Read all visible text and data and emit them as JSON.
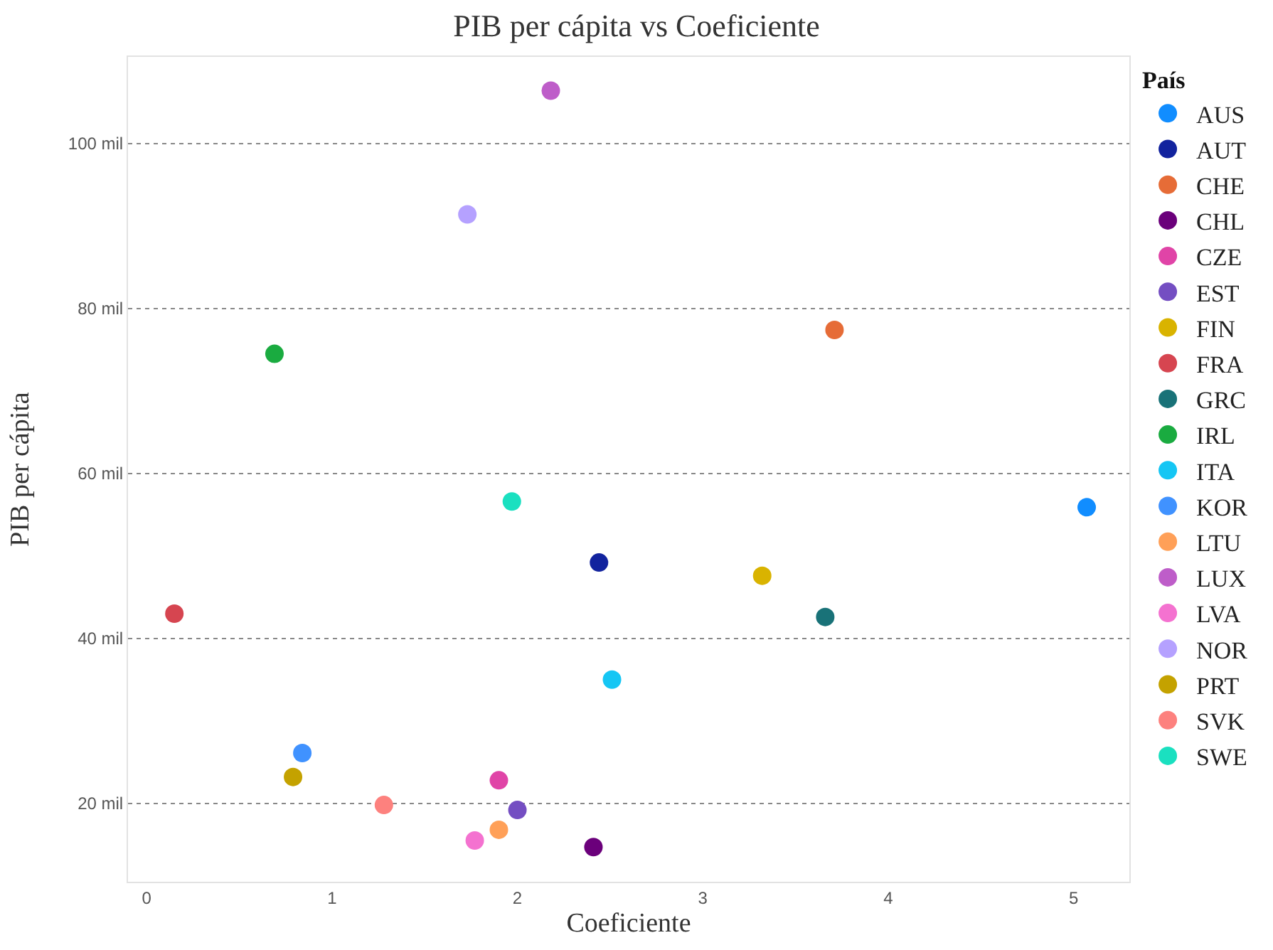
{
  "chart_data": {
    "type": "scatter",
    "title": "PIB per cápita vs Coeficiente",
    "xlabel": "Coeficiente",
    "ylabel": "PIB per cápita",
    "legend_title": "País",
    "xlim": [
      -0.1,
      5.3
    ],
    "xticks": [
      0,
      1,
      2,
      3,
      4,
      5
    ],
    "ylim": [
      10.5,
      110.5
    ],
    "yticks": [
      {
        "value": 20,
        "label": "20 mil"
      },
      {
        "value": 40,
        "label": "40 mil"
      },
      {
        "value": 60,
        "label": "60 mil"
      },
      {
        "value": 80,
        "label": "80 mil"
      },
      {
        "value": 100,
        "label": "100 mil"
      }
    ],
    "grid": "y",
    "legend": "right",
    "marker": "circle",
    "series": [
      {
        "name": "AUS",
        "color": "#118dff",
        "x": [
          5.07
        ],
        "values": [
          55.9
        ]
      },
      {
        "name": "AUT",
        "color": "#12239e",
        "x": [
          2.44
        ],
        "values": [
          49.2
        ]
      },
      {
        "name": "CHE",
        "color": "#e66c37",
        "x": [
          3.71
        ],
        "values": [
          77.4
        ]
      },
      {
        "name": "CHL",
        "color": "#6b007b",
        "x": [
          2.41
        ],
        "values": [
          14.7
        ]
      },
      {
        "name": "CZE",
        "color": "#e044a7",
        "x": [
          1.9
        ],
        "values": [
          22.8
        ]
      },
      {
        "name": "EST",
        "color": "#744ec2",
        "x": [
          2.0
        ],
        "values": [
          19.2
        ]
      },
      {
        "name": "FIN",
        "color": "#d9b300",
        "x": [
          3.32
        ],
        "values": [
          47.6
        ]
      },
      {
        "name": "FRA",
        "color": "#d64550",
        "x": [
          0.15
        ],
        "values": [
          43.0
        ]
      },
      {
        "name": "GRC",
        "color": "#197278",
        "x": [
          3.66
        ],
        "values": [
          42.6
        ]
      },
      {
        "name": "IRL",
        "color": "#1aab40",
        "x": [
          0.69
        ],
        "values": [
          74.5
        ]
      },
      {
        "name": "ITA",
        "color": "#15c6f4",
        "x": [
          2.51
        ],
        "values": [
          35.0
        ]
      },
      {
        "name": "KOR",
        "color": "#4092ff",
        "x": [
          0.84
        ],
        "values": [
          26.1
        ]
      },
      {
        "name": "LTU",
        "color": "#ffa058",
        "x": [
          1.9
        ],
        "values": [
          16.8
        ]
      },
      {
        "name": "LUX",
        "color": "#be5dc9",
        "x": [
          2.18
        ],
        "values": [
          106.4
        ]
      },
      {
        "name": "LVA",
        "color": "#f472d0",
        "x": [
          1.77
        ],
        "values": [
          15.5
        ]
      },
      {
        "name": "NOR",
        "color": "#b5a1ff",
        "x": [
          1.73
        ],
        "values": [
          91.4
        ]
      },
      {
        "name": "PRT",
        "color": "#c4a200",
        "x": [
          0.79
        ],
        "values": [
          23.2
        ]
      },
      {
        "name": "SVK",
        "color": "#fd817e",
        "x": [
          1.28
        ],
        "values": [
          19.8
        ]
      },
      {
        "name": "SWE",
        "color": "#1ae0c0",
        "x": [
          1.97
        ],
        "values": [
          56.6
        ]
      }
    ]
  }
}
